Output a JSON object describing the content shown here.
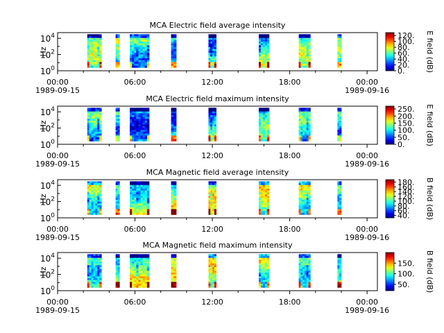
{
  "chart_data": [
    {
      "type": "heatmap",
      "title": "MCA  Electric field average intensity",
      "ylabel": "Hz",
      "yscale": "log",
      "ylim": [
        1,
        50000
      ],
      "y_ticks": [
        {
          "base": "10",
          "exp": "0"
        },
        {
          "base": "10",
          "exp": "2"
        },
        {
          "base": "10",
          "exp": "4"
        }
      ],
      "x_ticks": [
        "00:00",
        "06:00",
        "12:00",
        "18:00",
        "00:00"
      ],
      "x_dates": [
        "1989-09-15",
        "1989-09-16"
      ],
      "colorbar": {
        "label": "E field (dB)",
        "range": [
          0,
          130
        ],
        "ticks": [
          "0.",
          "20.",
          "40.",
          "60.",
          "80.",
          "100.",
          "120."
        ],
        "tick_values": [
          0,
          20,
          40,
          60,
          80,
          100,
          120
        ]
      },
      "segments_hours": [
        [
          2.3,
          3.4
        ],
        [
          4.5,
          4.8
        ],
        [
          5.6,
          7.1
        ],
        [
          8.8,
          9.2
        ],
        [
          11.7,
          12.3
        ],
        [
          15.6,
          16.4
        ],
        [
          18.7,
          19.6
        ],
        [
          21.7,
          22.0
        ]
      ],
      "base_level": 0.4
    },
    {
      "type": "heatmap",
      "title": "MCA  Electric field maximum intensity",
      "ylabel": "Hz",
      "yscale": "log",
      "ylim": [
        1,
        50000
      ],
      "y_ticks": [
        {
          "base": "10",
          "exp": "0"
        },
        {
          "base": "10",
          "exp": "2"
        },
        {
          "base": "10",
          "exp": "4"
        }
      ],
      "x_ticks": [
        "00:00",
        "06:00",
        "12:00",
        "18:00",
        "00:00"
      ],
      "x_dates": [
        "1989-09-15",
        "1989-09-16"
      ],
      "colorbar": {
        "label": "E field (dB)",
        "range": [
          0,
          270
        ],
        "ticks": [
          "0.",
          "50.",
          "100.",
          "150.",
          "200.",
          "250."
        ],
        "tick_values": [
          0,
          50,
          100,
          150,
          200,
          250
        ]
      },
      "segments_hours": [
        [
          2.3,
          3.4
        ],
        [
          4.5,
          4.8
        ],
        [
          5.6,
          7.1
        ],
        [
          8.8,
          9.2
        ],
        [
          11.7,
          12.3
        ],
        [
          15.6,
          16.4
        ],
        [
          18.7,
          19.6
        ],
        [
          21.7,
          22.0
        ]
      ],
      "base_level": 0.32
    },
    {
      "type": "heatmap",
      "title": "MCA  Magnetic field average intensity",
      "ylabel": "Hz",
      "yscale": "log",
      "ylim": [
        1,
        50000
      ],
      "y_ticks": [
        {
          "base": "10",
          "exp": "0"
        },
        {
          "base": "10",
          "exp": "2"
        },
        {
          "base": "10",
          "exp": "4"
        }
      ],
      "x_ticks": [
        "00:00",
        "06:00",
        "12:00",
        "18:00",
        "00:00"
      ],
      "x_dates": [
        "1989-09-15",
        "1989-09-16"
      ],
      "colorbar": {
        "label": "B field (dB)",
        "range": [
          30,
          190
        ],
        "ticks": [
          "40.",
          "60.",
          "80.",
          "100.",
          "120.",
          "140.",
          "160.",
          "180."
        ],
        "tick_values": [
          40,
          60,
          80,
          100,
          120,
          140,
          160,
          180
        ]
      },
      "segments_hours": [
        [
          2.3,
          3.4
        ],
        [
          4.5,
          4.8
        ],
        [
          5.6,
          7.1
        ],
        [
          8.8,
          9.2
        ],
        [
          11.7,
          12.3
        ],
        [
          15.6,
          16.4
        ],
        [
          18.7,
          19.6
        ],
        [
          21.7,
          22.0
        ]
      ],
      "base_level": 0.5
    },
    {
      "type": "heatmap",
      "title": "MCA  Magnetic field maximum intensity",
      "ylabel": "Hz",
      "yscale": "log",
      "ylim": [
        1,
        50000
      ],
      "y_ticks": [
        {
          "base": "10",
          "exp": "0"
        },
        {
          "base": "10",
          "exp": "2"
        },
        {
          "base": "10",
          "exp": "4"
        }
      ],
      "x_ticks": [
        "00:00",
        "06:00",
        "12:00",
        "18:00",
        "00:00"
      ],
      "x_dates": [
        "1989-09-15",
        "1989-09-16"
      ],
      "colorbar": {
        "label": "B field (dB)",
        "range": [
          20,
          200
        ],
        "ticks": [
          "50.",
          "100.",
          "150."
        ],
        "tick_values": [
          50,
          100,
          150
        ]
      },
      "segments_hours": [
        [
          2.3,
          3.4
        ],
        [
          4.5,
          4.8
        ],
        [
          5.6,
          7.1
        ],
        [
          8.8,
          9.2
        ],
        [
          11.7,
          12.3
        ],
        [
          15.6,
          16.4
        ],
        [
          18.7,
          19.6
        ],
        [
          21.7,
          22.0
        ]
      ],
      "base_level": 0.5
    }
  ]
}
